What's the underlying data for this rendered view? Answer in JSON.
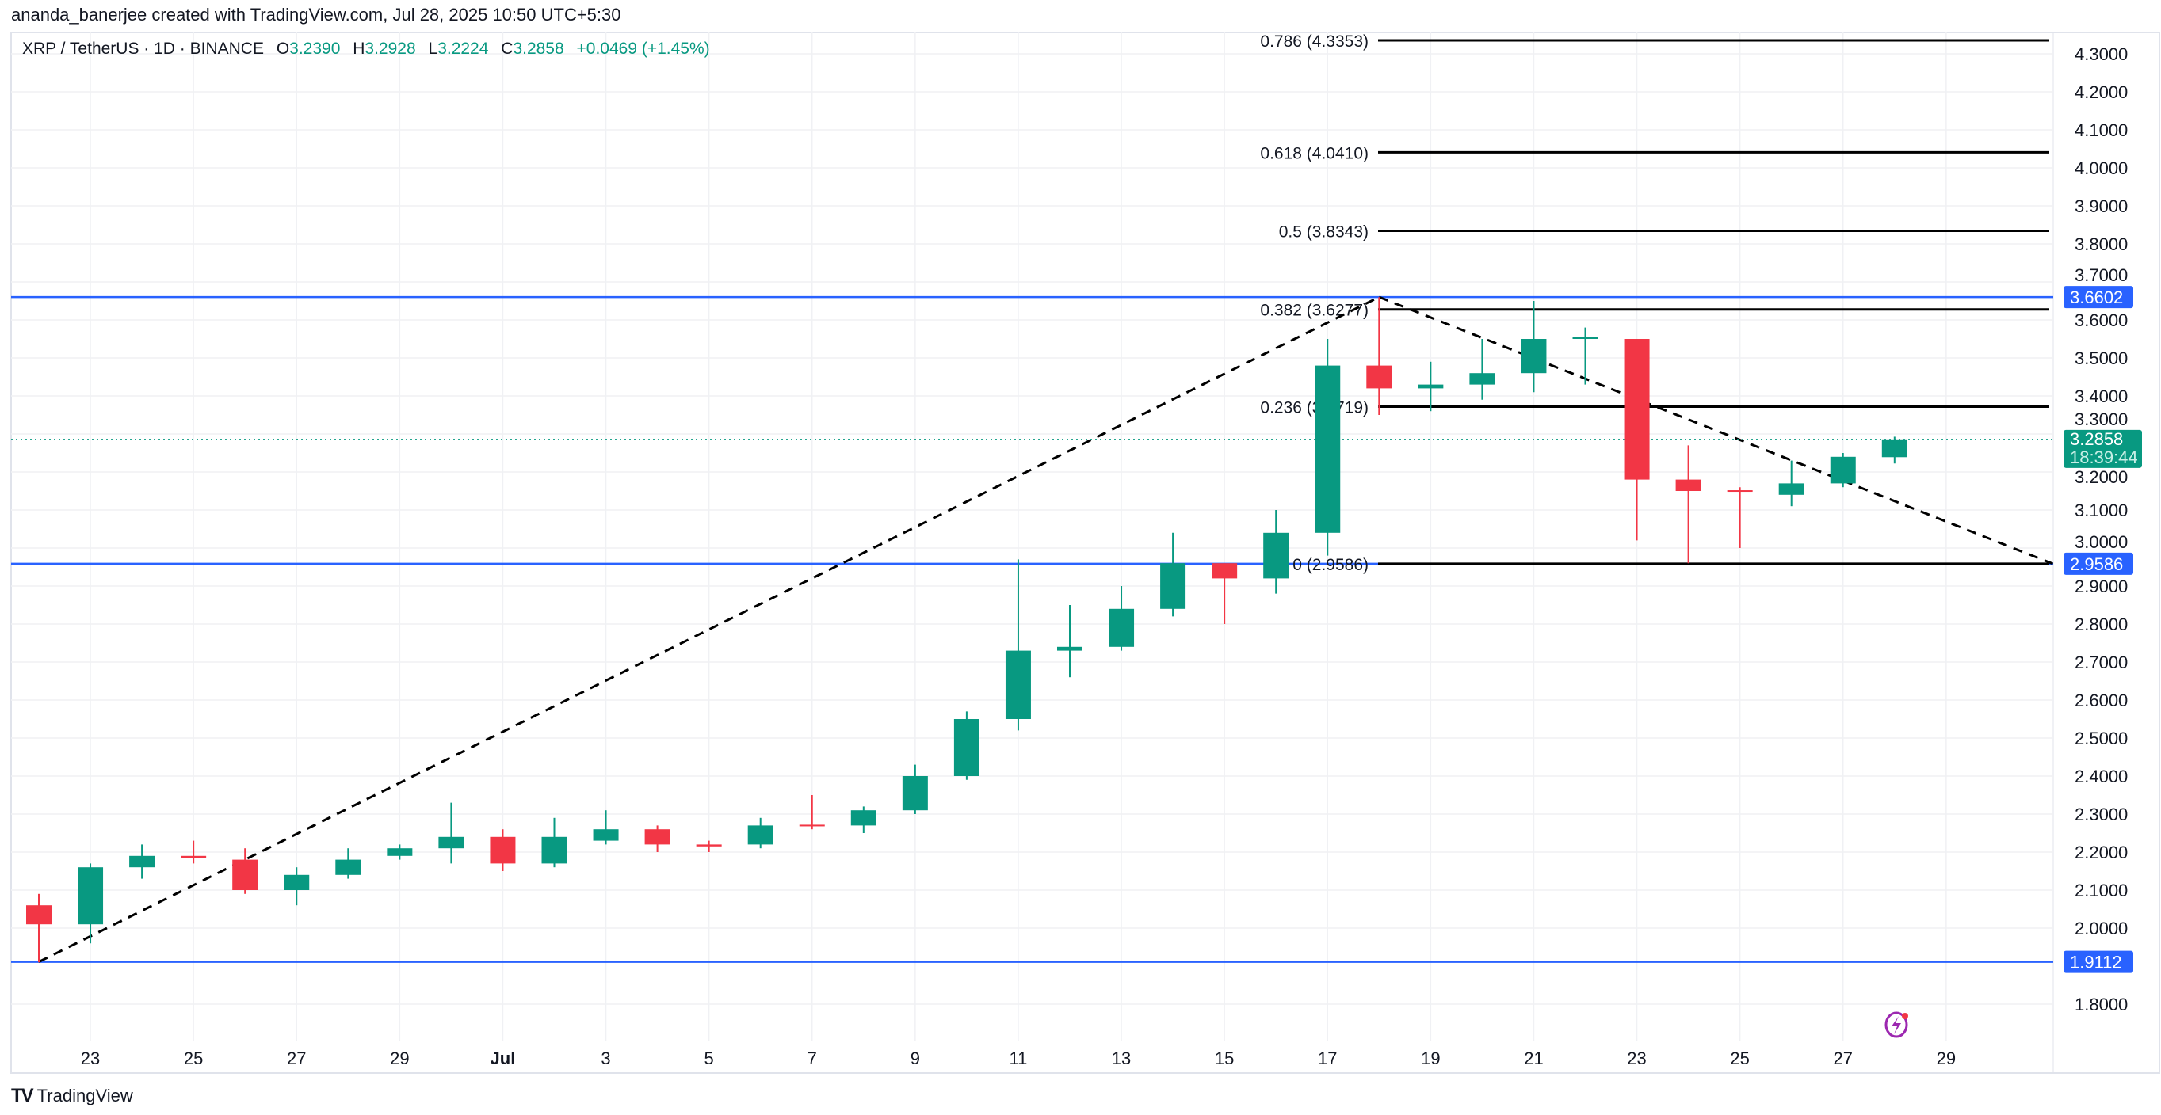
{
  "credit": "ananda_banerjee created with TradingView.com, Jul 28, 2025 10:50 UTC+5:30",
  "legend": {
    "symbol": "XRP / TetherUS · 1D · BINANCE",
    "o_label": "O",
    "o": "3.2390",
    "h_label": "H",
    "h": "3.2928",
    "l_label": "L",
    "l": "3.2224",
    "c_label": "C",
    "c": "3.2858",
    "change": "+0.0469 (+1.45%)"
  },
  "footer": {
    "logo_text": "TradingView",
    "logo_mark": "TV"
  },
  "colors": {
    "bull": "#089981",
    "bear": "#f23645",
    "level": "#2962ff",
    "fib": "#000000",
    "grid": "#f0f1f4"
  },
  "chart_data": {
    "type": "candlestick",
    "interval": "1D",
    "ylim": [
      1.72,
      4.36
    ],
    "y_ticks": [
      "4.3000",
      "4.2000",
      "4.1000",
      "4.0000",
      "3.9000",
      "3.8000",
      "3.7000",
      "3.6000",
      "3.5000",
      "3.4000",
      "3.3000",
      "3.2000",
      "3.1000",
      "3.0000",
      "2.9000",
      "2.8000",
      "2.7000",
      "2.6000",
      "2.5000",
      "2.4000",
      "2.3000",
      "2.2000",
      "2.1000",
      "2.0000",
      "1.8000"
    ],
    "x_ticks": [
      {
        "day": 1,
        "label": "23"
      },
      {
        "day": 3,
        "label": "25"
      },
      {
        "day": 5,
        "label": "27"
      },
      {
        "day": 7,
        "label": "29"
      },
      {
        "day": 9,
        "label": "Jul"
      },
      {
        "day": 11,
        "label": "3"
      },
      {
        "day": 13,
        "label": "5"
      },
      {
        "day": 15,
        "label": "7"
      },
      {
        "day": 17,
        "label": "9"
      },
      {
        "day": 19,
        "label": "11"
      },
      {
        "day": 21,
        "label": "13"
      },
      {
        "day": 23,
        "label": "15"
      },
      {
        "day": 25,
        "label": "17"
      },
      {
        "day": 27,
        "label": "19"
      },
      {
        "day": 29,
        "label": "21"
      },
      {
        "day": 31,
        "label": "23"
      },
      {
        "day": 33,
        "label": "25"
      },
      {
        "day": 35,
        "label": "27"
      },
      {
        "day": 37,
        "label": "29"
      }
    ],
    "candles": [
      {
        "date": "Jun 22",
        "o": 2.06,
        "h": 2.09,
        "l": 1.91,
        "c": 2.01
      },
      {
        "date": "Jun 23",
        "o": 2.01,
        "h": 2.17,
        "l": 1.96,
        "c": 2.16
      },
      {
        "date": "Jun 24",
        "o": 2.16,
        "h": 2.22,
        "l": 2.13,
        "c": 2.19
      },
      {
        "date": "Jun 25",
        "o": 2.19,
        "h": 2.23,
        "l": 2.17,
        "c": 2.185
      },
      {
        "date": "Jun 26",
        "o": 2.18,
        "h": 2.21,
        "l": 2.09,
        "c": 2.1
      },
      {
        "date": "Jun 27",
        "o": 2.1,
        "h": 2.16,
        "l": 2.06,
        "c": 2.14
      },
      {
        "date": "Jun 28",
        "o": 2.14,
        "h": 2.21,
        "l": 2.13,
        "c": 2.18
      },
      {
        "date": "Jun 29",
        "o": 2.19,
        "h": 2.22,
        "l": 2.18,
        "c": 2.21
      },
      {
        "date": "Jun 30",
        "o": 2.21,
        "h": 2.33,
        "l": 2.17,
        "c": 2.24
      },
      {
        "date": "Jul 1",
        "o": 2.24,
        "h": 2.26,
        "l": 2.15,
        "c": 2.17
      },
      {
        "date": "Jul 2",
        "o": 2.17,
        "h": 2.29,
        "l": 2.16,
        "c": 2.24
      },
      {
        "date": "Jul 3",
        "o": 2.23,
        "h": 2.31,
        "l": 2.22,
        "c": 2.26
      },
      {
        "date": "Jul 4",
        "o": 2.26,
        "h": 2.27,
        "l": 2.2,
        "c": 2.22
      },
      {
        "date": "Jul 5",
        "o": 2.22,
        "h": 2.23,
        "l": 2.2,
        "c": 2.215
      },
      {
        "date": "Jul 6",
        "o": 2.22,
        "h": 2.29,
        "l": 2.21,
        "c": 2.27
      },
      {
        "date": "Jul 7",
        "o": 2.272,
        "h": 2.35,
        "l": 2.26,
        "c": 2.27
      },
      {
        "date": "Jul 8",
        "o": 2.27,
        "h": 2.32,
        "l": 2.25,
        "c": 2.31
      },
      {
        "date": "Jul 9",
        "o": 2.31,
        "h": 2.43,
        "l": 2.3,
        "c": 2.4
      },
      {
        "date": "Jul 10",
        "o": 2.4,
        "h": 2.57,
        "l": 2.39,
        "c": 2.55
      },
      {
        "date": "Jul 11",
        "o": 2.55,
        "h": 2.97,
        "l": 2.52,
        "c": 2.73
      },
      {
        "date": "Jul 12",
        "o": 2.73,
        "h": 2.85,
        "l": 2.66,
        "c": 2.74
      },
      {
        "date": "Jul 13",
        "o": 2.74,
        "h": 2.9,
        "l": 2.73,
        "c": 2.84
      },
      {
        "date": "Jul 14",
        "o": 2.84,
        "h": 3.04,
        "l": 2.82,
        "c": 2.96
      },
      {
        "date": "Jul 15",
        "o": 2.96,
        "h": 2.96,
        "l": 2.8,
        "c": 2.92
      },
      {
        "date": "Jul 16",
        "o": 2.92,
        "h": 3.1,
        "l": 2.88,
        "c": 3.04
      },
      {
        "date": "Jul 17",
        "o": 3.04,
        "h": 3.55,
        "l": 2.98,
        "c": 3.48
      },
      {
        "date": "Jul 18",
        "o": 3.48,
        "h": 3.66,
        "l": 3.35,
        "c": 3.42
      },
      {
        "date": "Jul 19",
        "o": 3.42,
        "h": 3.49,
        "l": 3.36,
        "c": 3.43
      },
      {
        "date": "Jul 20",
        "o": 3.43,
        "h": 3.55,
        "l": 3.39,
        "c": 3.46
      },
      {
        "date": "Jul 21",
        "o": 3.46,
        "h": 3.65,
        "l": 3.41,
        "c": 3.55
      },
      {
        "date": "Jul 22",
        "o": 3.55,
        "h": 3.58,
        "l": 3.43,
        "c": 3.555
      },
      {
        "date": "Jul 23",
        "o": 3.55,
        "h": 3.55,
        "l": 3.02,
        "c": 3.18
      },
      {
        "date": "Jul 24",
        "o": 3.18,
        "h": 3.27,
        "l": 2.96,
        "c": 3.15
      },
      {
        "date": "Jul 25",
        "o": 3.152,
        "h": 3.16,
        "l": 3.0,
        "c": 3.148
      },
      {
        "date": "Jul 26",
        "o": 3.14,
        "h": 3.23,
        "l": 3.11,
        "c": 3.17
      },
      {
        "date": "Jul 27",
        "o": 3.17,
        "h": 3.25,
        "l": 3.16,
        "c": 3.24
      },
      {
        "date": "Jul 28",
        "o": 3.239,
        "h": 3.2928,
        "l": 3.2224,
        "c": 3.2858
      }
    ],
    "horizontal_levels": [
      {
        "price": 3.6602,
        "label": "3.6602"
      },
      {
        "price": 2.9586,
        "label": "2.9586"
      },
      {
        "price": 1.9112,
        "label": "1.9112"
      }
    ],
    "fib_levels": [
      {
        "price": 4.3353,
        "label": "0.786 (4.3353)"
      },
      {
        "price": 4.041,
        "label": "0.618 (4.0410)"
      },
      {
        "price": 3.8343,
        "label": "0.5 (3.8343)"
      },
      {
        "price": 3.6277,
        "label": "0.382 (3.6277)"
      },
      {
        "price": 3.3719,
        "label": "0.236 (3.3719)"
      },
      {
        "price": 2.9586,
        "label": "0 (2.9586)"
      }
    ],
    "trend_lines": [
      {
        "from": {
          "day": 0,
          "price": 1.9112
        },
        "to": {
          "day": 26,
          "price": 3.6602
        }
      },
      {
        "from": {
          "day": 26,
          "price": 3.6602
        },
        "to": {
          "day": 39.07,
          "price": 2.9586
        }
      }
    ],
    "last_price": {
      "price": 3.2858,
      "label": "3.2858",
      "countdown": "18:39:44"
    }
  }
}
